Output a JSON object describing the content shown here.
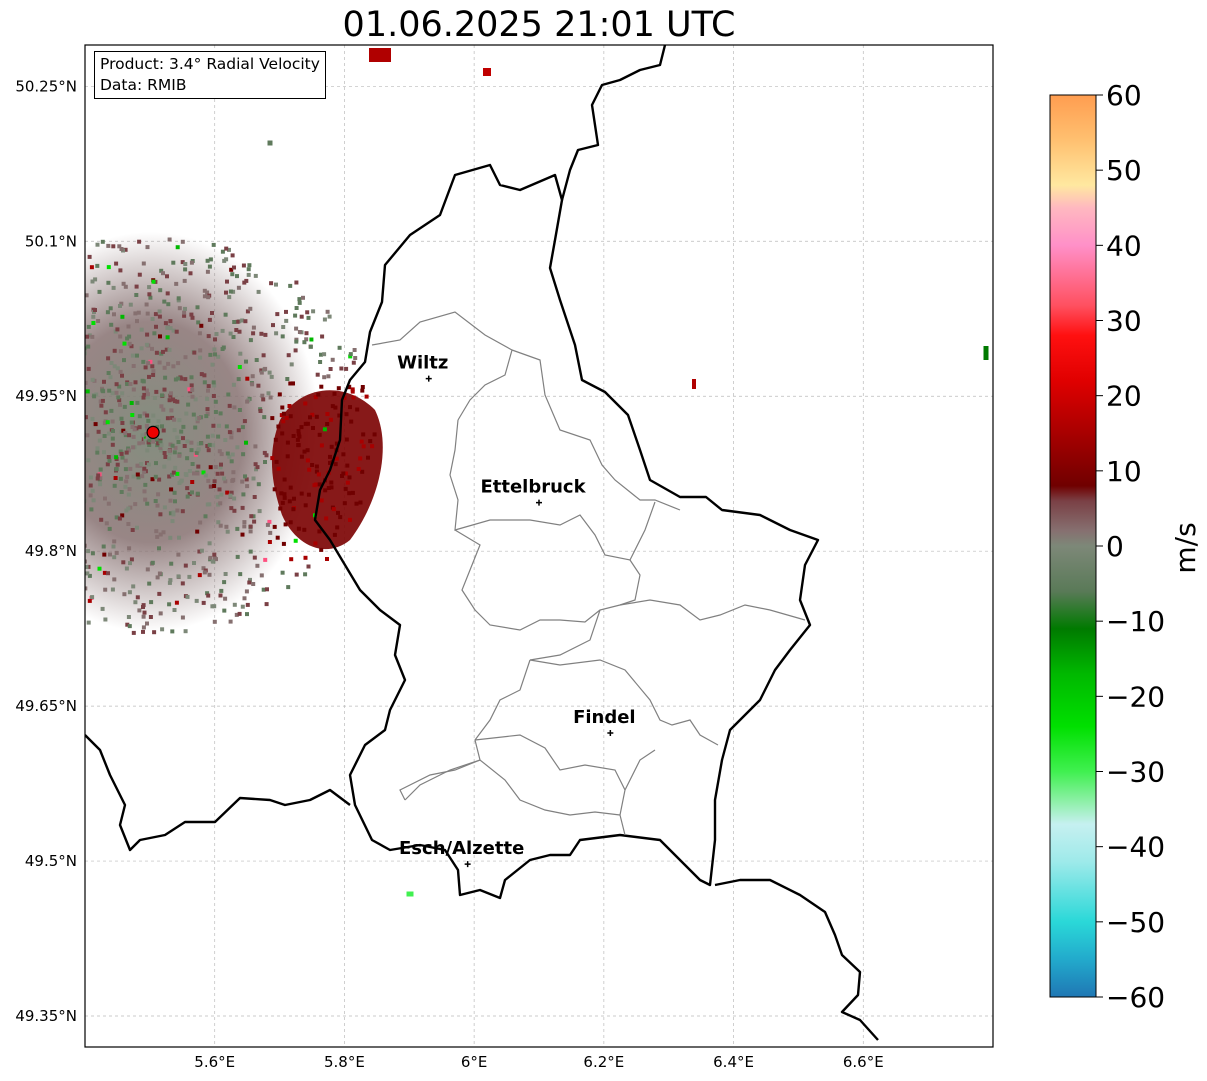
{
  "title": "01.06.2025 21:01 UTC",
  "info": {
    "product_line": "Product: 3.4° Radial Velocity",
    "data_line": "Data: RMIB"
  },
  "map": {
    "lon_range": [
      5.4,
      6.8
    ],
    "lat_range": [
      49.32,
      50.29
    ],
    "lon_ticks": [
      {
        "value": 5.6,
        "label": "5.6°E"
      },
      {
        "value": 5.8,
        "label": "5.8°E"
      },
      {
        "value": 6.0,
        "label": "6°E"
      },
      {
        "value": 6.2,
        "label": "6.2°E"
      },
      {
        "value": 6.4,
        "label": "6.4°E"
      },
      {
        "value": 6.6,
        "label": "6.6°E"
      }
    ],
    "lat_ticks": [
      {
        "value": 49.35,
        "label": "49.35°N"
      },
      {
        "value": 49.5,
        "label": "49.5°N"
      },
      {
        "value": 49.65,
        "label": "49.65°N"
      },
      {
        "value": 49.8,
        "label": "49.8°N"
      },
      {
        "value": 49.95,
        "label": "49.95°N"
      },
      {
        "value": 50.1,
        "label": "50.1°N"
      },
      {
        "value": 50.25,
        "label": "50.25°N"
      }
    ],
    "cities": [
      {
        "name": "Wiltz",
        "lon": 5.93,
        "lat": 49.967
      },
      {
        "name": "Ettelbruck",
        "lon": 6.1,
        "lat": 49.847
      },
      {
        "name": "Findel",
        "lon": 6.21,
        "lat": 49.624
      },
      {
        "name": "Esch/Alzette",
        "lon": 5.99,
        "lat": 49.497
      }
    ],
    "radar_site": {
      "lon": 5.505,
      "lat": 49.915
    },
    "colors": {
      "border": "#000000",
      "canton": "#808080",
      "grid": "#bbbbbb",
      "radar_marker": "#ee0000"
    }
  },
  "colorbar": {
    "unit": "m/s",
    "range": [
      -60,
      60
    ],
    "ticks": [
      {
        "value": 60,
        "label": "60"
      },
      {
        "value": 50,
        "label": "50"
      },
      {
        "value": 40,
        "label": "40"
      },
      {
        "value": 30,
        "label": "30"
      },
      {
        "value": 20,
        "label": "20"
      },
      {
        "value": 10,
        "label": "10"
      },
      {
        "value": 0,
        "label": "0"
      },
      {
        "value": -10,
        "label": "−10"
      },
      {
        "value": -20,
        "label": "−20"
      },
      {
        "value": -30,
        "label": "−30"
      },
      {
        "value": -40,
        "label": "−40"
      },
      {
        "value": -50,
        "label": "−50"
      },
      {
        "value": -60,
        "label": "−60"
      }
    ],
    "stops": [
      {
        "v": -60,
        "c": "#1f77b4"
      },
      {
        "v": -55,
        "c": "#22aacc"
      },
      {
        "v": -50,
        "c": "#2ad8d8"
      },
      {
        "v": -42,
        "c": "#9eeaea"
      },
      {
        "v": -37,
        "c": "#c6f0f0"
      },
      {
        "v": -34,
        "c": "#8ef0a8"
      },
      {
        "v": -30,
        "c": "#40f050"
      },
      {
        "v": -24,
        "c": "#00e000"
      },
      {
        "v": -17,
        "c": "#00b800"
      },
      {
        "v": -11,
        "c": "#007a00"
      },
      {
        "v": -6,
        "c": "#5a7a58"
      },
      {
        "v": 0,
        "c": "#7d8878"
      },
      {
        "v": 2,
        "c": "#867070"
      },
      {
        "v": 6,
        "c": "#7a4045"
      },
      {
        "v": 8,
        "c": "#700000"
      },
      {
        "v": 15,
        "c": "#a80000"
      },
      {
        "v": 22,
        "c": "#e00000"
      },
      {
        "v": 28,
        "c": "#ff1010"
      },
      {
        "v": 32,
        "c": "#ff5060"
      },
      {
        "v": 40,
        "c": "#ff90c8"
      },
      {
        "v": 45,
        "c": "#ffb8c0"
      },
      {
        "v": 48,
        "c": "#ffe8a0"
      },
      {
        "v": 54,
        "c": "#ffc070"
      },
      {
        "v": 60,
        "c": "#ff9d50"
      }
    ]
  }
}
